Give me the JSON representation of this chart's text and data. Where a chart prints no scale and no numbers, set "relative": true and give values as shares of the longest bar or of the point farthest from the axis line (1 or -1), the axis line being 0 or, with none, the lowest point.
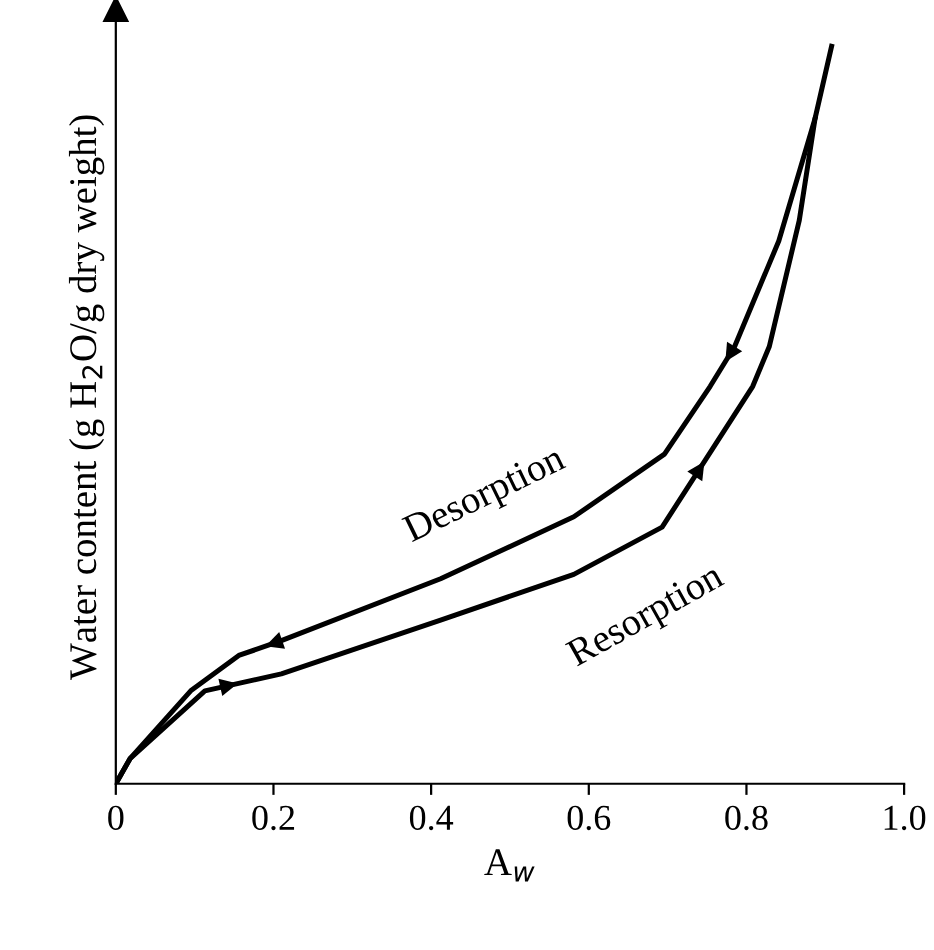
{
  "chart_data": {
    "type": "line",
    "relative": true,
    "xlabel": "A$_{w}$",
    "ylabel": "Water content (g H$_{2}$O/g dry weight)",
    "xlim": [
      0,
      1.0
    ],
    "xticks": [
      0,
      0.2,
      0.4,
      0.6,
      {
        "value": 0.8,
        "label": "0.8"
      },
      {
        "value": 1.0,
        "label": "1.0"
      }
    ],
    "legend": false,
    "grid": false,
    "marker": "none",
    "line_style": "solid",
    "series": [
      {
        "name": "Desorption",
        "color": "#000000",
        "x": [
          0.887,
          0.841,
          0.785,
          0.754,
          0.696,
          0.581,
          0.412,
          0.21,
          0.156,
          0.095,
          0.018,
          0
        ],
        "values": [
          0.902,
          0.736,
          0.593,
          0.539,
          0.447,
          0.362,
          0.278,
          0.194,
          0.174,
          0.126,
          0.034,
          0
        ]
      },
      {
        "name": "Resorption",
        "color": "#000000",
        "x": [
          0,
          0.018,
          0.113,
          0.21,
          0.412,
          0.581,
          0.693,
          0.808,
          0.829,
          0.867,
          0.887,
          0.908
        ],
        "values": [
          0,
          0.034,
          0.126,
          0.149,
          0.222,
          0.284,
          0.348,
          0.539,
          0.593,
          0.764,
          0.902,
          1.0
        ]
      }
    ]
  }
}
